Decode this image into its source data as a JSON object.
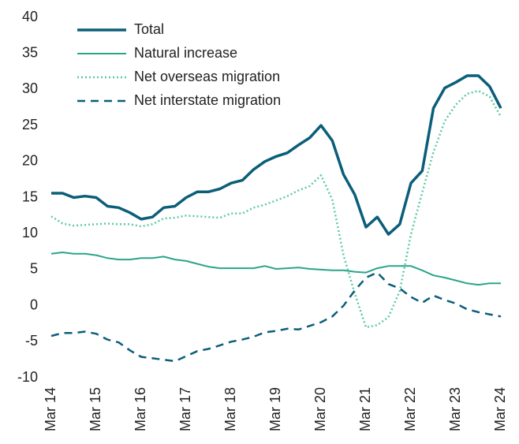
{
  "chart_data": {
    "type": "line",
    "categories": [
      "Mar 14",
      null,
      null,
      null,
      "Mar 15",
      null,
      null,
      null,
      "Mar 16",
      null,
      null,
      null,
      "Mar 17",
      null,
      null,
      null,
      "Mar 18",
      null,
      null,
      null,
      "Mar 19",
      null,
      null,
      null,
      "Mar 20",
      null,
      null,
      null,
      "Mar 21",
      null,
      null,
      null,
      "Mar 22",
      null,
      null,
      null,
      "Mar 23",
      null,
      null,
      null,
      "Mar 24"
    ],
    "series": [
      {
        "name": "Total",
        "color": "#0b5e7a",
        "style": "thick",
        "values": [
          15.6,
          15.6,
          15.0,
          15.2,
          15.0,
          13.8,
          13.6,
          12.9,
          12.0,
          12.3,
          13.6,
          13.8,
          15.0,
          15.8,
          15.8,
          16.2,
          17.0,
          17.4,
          18.9,
          20.0,
          20.7,
          21.2,
          22.3,
          23.3,
          25.0,
          22.9,
          18.2,
          15.4,
          10.9,
          12.3,
          9.9,
          11.3,
          17.0,
          18.7,
          27.4,
          30.2,
          31.0,
          31.9,
          31.9,
          30.4,
          27.4
        ]
      },
      {
        "name": "Natural increase",
        "color": "#2aa58a",
        "style": "solid",
        "values": [
          7.2,
          7.4,
          7.2,
          7.2,
          7.0,
          6.6,
          6.4,
          6.4,
          6.6,
          6.6,
          6.8,
          6.4,
          6.2,
          5.8,
          5.4,
          5.2,
          5.2,
          5.2,
          5.2,
          5.5,
          5.1,
          5.2,
          5.3,
          5.1,
          5.0,
          4.9,
          4.9,
          4.7,
          4.6,
          5.2,
          5.5,
          5.5,
          5.5,
          4.9,
          4.2,
          3.9,
          3.5,
          3.1,
          2.9,
          3.1,
          3.1
        ]
      },
      {
        "name": "Net overseas migration",
        "color": "#5dcc9c",
        "style": "dotted",
        "values": [
          12.4,
          11.4,
          11.1,
          11.2,
          11.3,
          11.4,
          11.3,
          11.3,
          11.0,
          11.3,
          12.1,
          12.2,
          12.5,
          12.4,
          12.3,
          12.2,
          12.8,
          12.8,
          13.6,
          14.0,
          14.6,
          15.2,
          16.0,
          16.6,
          18.1,
          14.7,
          7.0,
          1.7,
          -3.0,
          -2.7,
          -1.6,
          2.0,
          9.9,
          15.7,
          21.3,
          25.6,
          27.9,
          29.4,
          29.8,
          29.0,
          26.2
        ]
      },
      {
        "name": "Net interstate migration",
        "color": "#0b5e7a",
        "style": "dashed",
        "values": [
          -4.2,
          -3.8,
          -3.8,
          -3.6,
          -3.9,
          -4.7,
          -5.1,
          -6.2,
          -7.1,
          -7.3,
          -7.5,
          -7.7,
          -7.0,
          -6.3,
          -6.0,
          -5.5,
          -5.0,
          -4.7,
          -4.3,
          -3.7,
          -3.5,
          -3.2,
          -3.3,
          -2.8,
          -2.3,
          -1.5,
          0,
          2.1,
          3.9,
          4.6,
          3.0,
          2.4,
          1.2,
          0.4,
          1.4,
          0.8,
          0.3,
          -0.5,
          -0.9,
          -1.2,
          -1.5
        ]
      }
    ],
    "ylim": [
      -10,
      40
    ],
    "yticks": [
      -10,
      -5,
      0,
      5,
      10,
      15,
      20,
      25,
      30,
      35,
      40
    ],
    "legend": "upper left",
    "grid": false
  }
}
